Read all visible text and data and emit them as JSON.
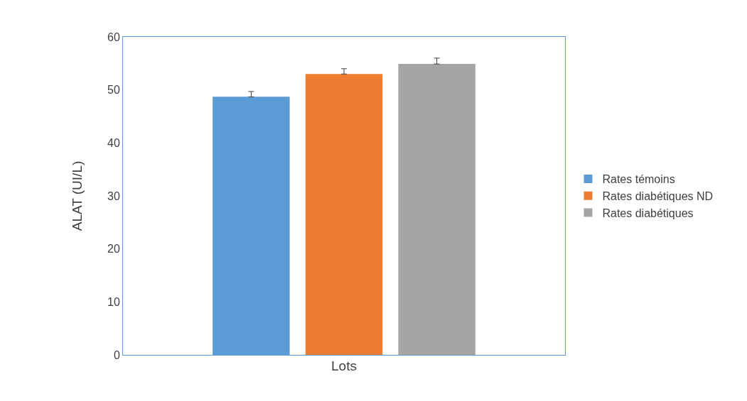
{
  "chart_data": {
    "type": "bar",
    "xlabel": "Lots",
    "ylabel": "ALAT (UI/L)",
    "categories": [
      null
    ],
    "series": [
      {
        "name": "Rates témoins",
        "color": "#5b9bd5",
        "values": [
          48.7
        ],
        "errors": [
          [
            48.7,
            49.7
          ]
        ]
      },
      {
        "name": "Rates diabétiques ND",
        "color": "#ed7d31",
        "values": [
          53.0
        ],
        "errors": [
          [
            53.0,
            54.0
          ]
        ]
      },
      {
        "name": "Rates diabétiques",
        "color": "#a5a5a5",
        "values": [
          54.9
        ],
        "errors": [
          [
            54.9,
            56.0
          ]
        ]
      }
    ],
    "ylim": [
      0,
      60
    ],
    "yticks": [
      0,
      10,
      20,
      30,
      40,
      50,
      60
    ],
    "legend": "right"
  }
}
